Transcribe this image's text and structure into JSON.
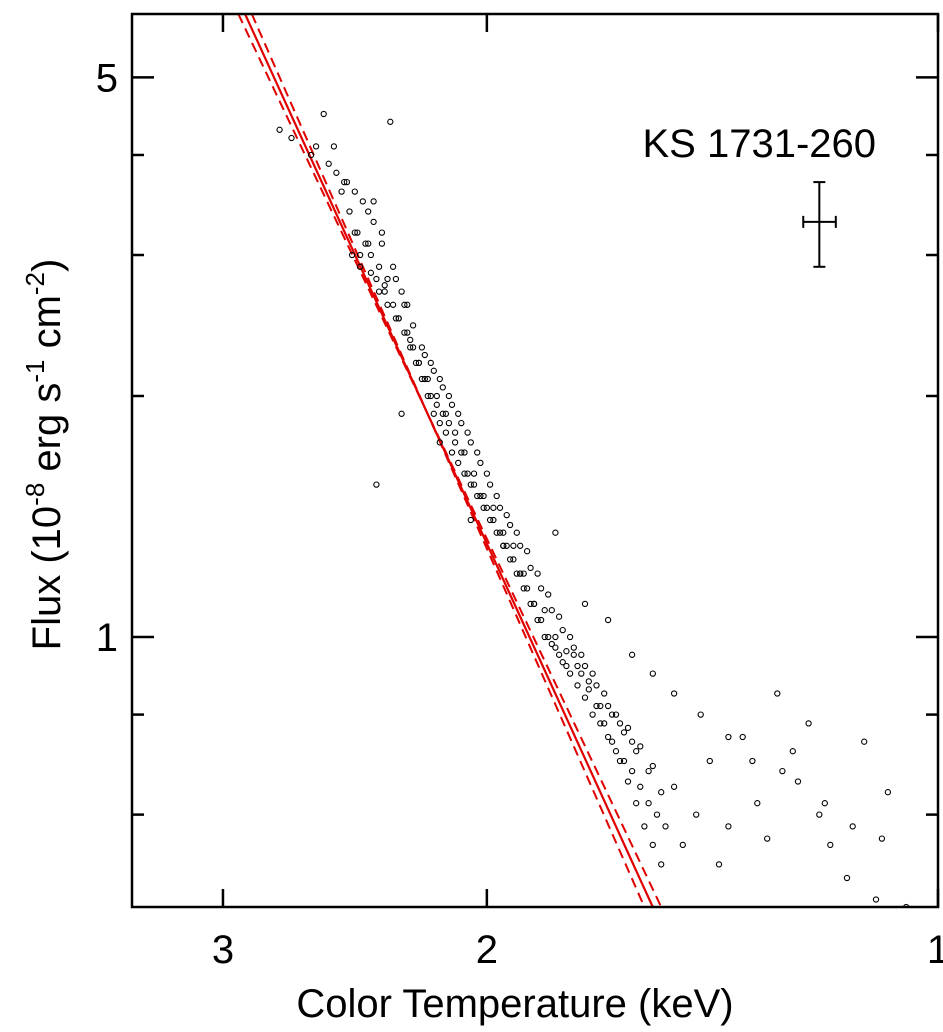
{
  "chart_data": {
    "type": "scatter",
    "title": "",
    "annotation": "KS 1731-260",
    "xlabel": "Color Temperature (keV)",
    "ylabel_parts": [
      "Flux (10",
      "-8",
      " erg s",
      "-1",
      " cm",
      "-2",
      ")"
    ],
    "x_scale": "log",
    "y_scale": "log",
    "x_reversed": true,
    "xlim": [
      3.45,
      1.0
    ],
    "ylim": [
      0.46,
      6.0
    ],
    "x_ticks": [
      {
        "value": 3,
        "label": "3"
      },
      {
        "value": 2,
        "label": "2"
      },
      {
        "value": 1,
        "label": "1"
      }
    ],
    "y_ticks": [
      {
        "value": 5,
        "label": "5"
      },
      {
        "value": 1,
        "label": "1"
      }
    ],
    "y_minor_ticks": [
      0.6,
      0.8,
      2,
      3,
      4
    ],
    "grid": false,
    "legend": "none",
    "point_color": "#000000",
    "fit_color": "#e00000",
    "fit_line": {
      "x": [
        2.9,
        1.55
      ],
      "y": [
        6.0,
        0.46
      ]
    },
    "confidence_band": [
      {
        "x": [
          2.87,
          1.57
        ],
        "y": [
          6.0,
          0.46
        ]
      },
      {
        "x": [
          2.93,
          1.53
        ],
        "y": [
          6.0,
          0.46
        ]
      }
    ],
    "representative_error": {
      "x": 1.2,
      "y": 3.3,
      "x_err": [
        1.23,
        1.17
      ],
      "y_err": [
        2.9,
        3.7
      ]
    },
    "points": {
      "x": [
        2.75,
        2.7,
        2.62,
        2.55,
        2.52,
        2.6,
        2.48,
        2.45,
        2.42,
        2.4,
        2.38,
        2.35,
        2.5,
        2.47,
        2.44,
        2.41,
        2.39,
        2.36,
        2.33,
        2.3,
        2.28,
        2.26,
        2.46,
        2.43,
        2.37,
        2.34,
        2.31,
        2.29,
        2.27,
        2.24,
        2.22,
        2.2,
        2.18,
        2.16,
        2.14,
        2.12,
        2.1,
        2.25,
        2.23,
        2.21,
        2.19,
        2.17,
        2.15,
        2.13,
        2.11,
        2.09,
        2.07,
        2.05,
        2.03,
        2.01,
        2.08,
        2.06,
        2.04,
        2.02,
        2.0,
        1.98,
        1.96,
        1.94,
        1.92,
        1.9,
        1.99,
        1.97,
        1.95,
        1.93,
        1.91,
        1.89,
        1.87,
        1.85,
        1.83,
        1.81,
        1.79,
        1.77,
        1.88,
        1.86,
        1.84,
        1.82,
        1.8,
        1.78,
        1.76,
        1.74,
        1.72,
        1.7,
        1.68,
        1.66,
        1.64,
        1.62,
        1.6,
        1.58,
        1.56,
        1.54,
        1.52,
        1.75,
        1.73,
        1.71,
        1.69,
        1.67,
        1.65,
        1.63,
        1.61,
        1.59,
        1.57,
        1.55,
        1.53,
        1.5,
        1.48,
        1.45,
        1.42,
        1.4,
        1.38,
        1.35,
        1.32,
        1.3,
        1.28,
        1.25,
        1.22,
        1.2,
        1.18,
        1.15,
        1.12,
        1.1,
        1.08,
        1.05,
        2.57,
        2.53,
        2.49,
        2.32,
        2.45,
        2.4,
        2.36,
        2.33,
        2.29,
        2.26,
        2.22,
        2.19,
        2.16,
        2.13,
        2.1,
        2.07,
        2.04,
        2.01,
        1.98,
        1.95,
        1.92,
        1.89,
        1.86,
        1.83,
        1.8,
        1.77,
        1.74,
        1.71,
        1.68,
        1.65,
        1.62,
        1.59,
        1.56,
        1.53,
        2.38,
        2.35,
        2.31,
        2.27,
        2.24,
        2.2,
        2.17,
        2.14,
        2.11,
        2.08,
        2.05,
        2.02,
        1.99,
        1.96,
        1.93,
        1.9,
        1.87,
        1.84,
        1.81,
        1.78,
        1.75,
        1.72,
        1.69,
        1.66,
        1.63,
        1.6,
        2.43,
        2.39,
        2.34,
        2.3,
        2.25,
        2.21,
        2.18,
        2.15,
        2.12,
        2.09,
        2.06,
        2.03,
        2.0,
        1.97,
        1.94,
        1.91,
        1.88,
        1.85,
        1.82,
        1.79,
        1.76,
        1.73,
        1.7,
        1.67,
        1.64,
        1.61,
        1.58,
        1.55,
        2.37,
        2.28,
        2.15,
        2.05,
        1.95,
        1.9,
        1.8,
        1.72,
        1.66,
        1.6,
        1.55,
        1.5,
        1.44,
        1.38,
        1.33,
        1.27,
        1.24,
        1.19,
        1.14,
        1.09
      ],
      "y": [
        4.3,
        4.2,
        4.0,
        3.9,
        3.8,
        4.1,
        3.7,
        3.6,
        3.5,
        3.4,
        3.3,
        3.2,
        3.6,
        3.4,
        3.2,
        3.1,
        3.0,
        2.9,
        2.8,
        2.8,
        2.7,
        2.6,
        3.0,
        2.9,
        2.8,
        2.7,
        2.6,
        2.5,
        2.4,
        2.3,
        2.2,
        2.1,
        2.0,
        1.95,
        1.9,
        1.85,
        1.8,
        2.3,
        2.2,
        2.1,
        2.0,
        1.9,
        1.85,
        1.8,
        1.7,
        1.65,
        1.6,
        1.55,
        1.5,
        1.45,
        1.7,
        1.6,
        1.55,
        1.5,
        1.45,
        1.4,
        1.35,
        1.3,
        1.25,
        1.2,
        1.4,
        1.35,
        1.3,
        1.25,
        1.2,
        1.15,
        1.1,
        1.05,
        1.0,
        0.98,
        0.95,
        0.92,
        1.15,
        1.1,
        1.05,
        1.0,
        0.97,
        0.93,
        0.9,
        0.87,
        0.84,
        0.8,
        0.78,
        0.75,
        0.72,
        0.7,
        0.68,
        0.65,
        0.62,
        0.6,
        0.58,
        0.95,
        0.9,
        0.86,
        0.82,
        0.78,
        0.74,
        0.7,
        0.66,
        0.62,
        0.58,
        0.55,
        0.52,
        0.65,
        0.55,
        0.6,
        0.7,
        0.52,
        0.58,
        0.75,
        0.62,
        0.56,
        0.85,
        0.72,
        0.78,
        0.6,
        0.55,
        0.5,
        0.74,
        0.47,
        0.64,
        0.46,
        4.5,
        4.1,
        3.7,
        4.4,
        3.2,
        3.1,
        2.7,
        2.6,
        2.5,
        2.4,
        2.2,
        2.1,
        2.0,
        1.9,
        1.75,
        1.7,
        1.6,
        1.5,
        1.45,
        1.35,
        1.3,
        1.2,
        1.1,
        1.08,
        1.0,
        0.96,
        0.92,
        0.88,
        0.82,
        0.8,
        0.76,
        0.72,
        0.68,
        0.64,
        3.5,
        3.1,
        2.9,
        2.6,
        2.45,
        2.25,
        2.15,
        2.05,
        1.95,
        1.85,
        1.75,
        1.65,
        1.55,
        1.45,
        1.38,
        1.3,
        1.22,
        1.15,
        1.08,
        1.02,
        0.97,
        0.92,
        0.87,
        0.82,
        0.78,
        0.74,
        3.0,
        2.85,
        2.75,
        2.5,
        2.35,
        2.3,
        2.2,
        2.1,
        2.0,
        1.9,
        1.8,
        1.7,
        1.6,
        1.5,
        1.42,
        1.35,
        1.28,
        1.2,
        1.13,
        1.06,
        1.0,
        0.95,
        0.9,
        0.85,
        0.8,
        0.77,
        0.73,
        0.69,
        1.55,
        1.9,
        1.75,
        1.4,
        1.3,
        1.2,
        1.35,
        1.1,
        1.05,
        0.95,
        0.9,
        0.85,
        0.8,
        0.75,
        0.7,
        0.68,
        0.66,
        0.62,
        0.58,
        0.56
      ]
    }
  }
}
